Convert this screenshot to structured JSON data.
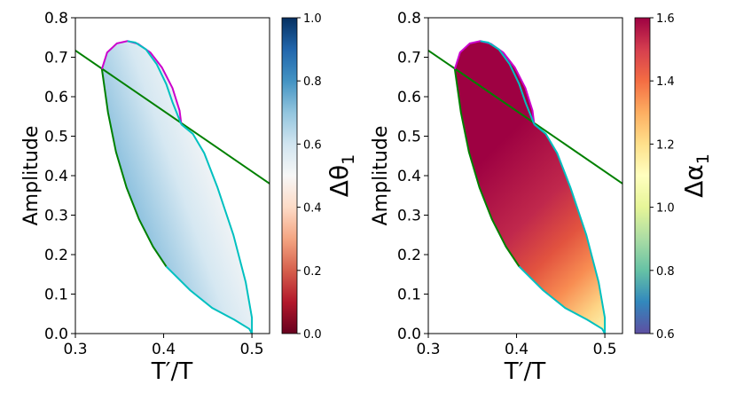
{
  "chart_data": [
    {
      "type": "heatmap",
      "title": "",
      "xlabel": "T′/T",
      "ylabel": "Amplitude",
      "xlim": [
        0.3,
        0.52
      ],
      "ylim": [
        0.0,
        0.8
      ],
      "xticks": [
        "0.3",
        "0.4",
        "0.5"
      ],
      "yticks": [
        "0.0",
        "0.1",
        "0.2",
        "0.3",
        "0.4",
        "0.5",
        "0.6",
        "0.7",
        "0.8"
      ],
      "colorbar": {
        "label": "Δθ",
        "label_sub": "1",
        "cmap": "RdBu",
        "range": [
          0.0,
          1.0
        ],
        "ticks": [
          "0.0",
          "0.2",
          "0.4",
          "0.6",
          "0.8",
          "1.0"
        ]
      },
      "field_description": "value near 0.6-0.8 toward left/lower boundary, ~0.5 near right boundary",
      "curves": [
        {
          "name": "",
          "color": "#008000",
          "points": [
            [
              0.3,
              0.717
            ],
            [
              0.52,
              0.38
            ]
          ]
        },
        {
          "name": "",
          "color": "#008000",
          "points": [
            [
              0.33,
              0.67
            ],
            [
              0.337,
              0.56
            ],
            [
              0.346,
              0.46
            ],
            [
              0.358,
              0.37
            ],
            [
              0.372,
              0.29
            ],
            [
              0.388,
              0.22
            ],
            [
              0.403,
              0.17
            ]
          ]
        },
        {
          "name": "",
          "color": "#cc00cc",
          "points": [
            [
              0.33,
              0.67
            ],
            [
              0.336,
              0.712
            ],
            [
              0.347,
              0.735
            ],
            [
              0.359,
              0.741
            ],
            [
              0.371,
              0.734
            ],
            [
              0.385,
              0.712
            ],
            [
              0.398,
              0.674
            ],
            [
              0.41,
              0.622
            ],
            [
              0.418,
              0.565
            ],
            [
              0.42,
              0.53
            ]
          ]
        },
        {
          "name": "",
          "color": "#00c0c0",
          "points": [
            [
              0.42,
              0.53
            ],
            [
              0.41,
              0.586
            ],
            [
              0.403,
              0.632
            ],
            [
              0.392,
              0.683
            ],
            [
              0.38,
              0.72
            ],
            [
              0.368,
              0.737
            ],
            [
              0.359,
              0.741
            ]
          ]
        },
        {
          "name": "",
          "color": "#00c0c0",
          "points": [
            [
              0.403,
              0.17
            ],
            [
              0.43,
              0.11
            ],
            [
              0.455,
              0.065
            ],
            [
              0.48,
              0.035
            ],
            [
              0.497,
              0.012
            ],
            [
              0.5,
              0.0
            ],
            [
              0.5,
              0.04
            ],
            [
              0.493,
              0.13
            ],
            [
              0.479,
              0.25
            ],
            [
              0.461,
              0.37
            ],
            [
              0.446,
              0.457
            ],
            [
              0.433,
              0.506
            ],
            [
              0.42,
              0.53
            ]
          ]
        }
      ]
    },
    {
      "type": "heatmap",
      "title": "",
      "xlabel": "T′/T",
      "ylabel": "Amplitude",
      "xlim": [
        0.3,
        0.52
      ],
      "ylim": [
        0.0,
        0.8
      ],
      "xticks": [
        "0.3",
        "0.4",
        "0.5"
      ],
      "yticks": [
        "0.0",
        "0.1",
        "0.2",
        "0.3",
        "0.4",
        "0.5",
        "0.6",
        "0.7",
        "0.8"
      ],
      "colorbar": {
        "label": "Δα",
        "label_sub": "1",
        "cmap": "Spectral_r",
        "range": [
          0.6,
          1.6
        ],
        "ticks": [
          "0.6",
          "0.8",
          "1.0",
          "1.2",
          "1.4",
          "1.6"
        ]
      },
      "field_description": "1.6 across upper region, decreasing toward ~1.1 at lower right boundary",
      "curves": [
        {
          "name": "",
          "color": "#008000",
          "points": [
            [
              0.3,
              0.717
            ],
            [
              0.52,
              0.38
            ]
          ]
        },
        {
          "name": "",
          "color": "#008000",
          "points": [
            [
              0.33,
              0.67
            ],
            [
              0.337,
              0.56
            ],
            [
              0.346,
              0.46
            ],
            [
              0.358,
              0.37
            ],
            [
              0.372,
              0.29
            ],
            [
              0.388,
              0.22
            ],
            [
              0.403,
              0.17
            ]
          ]
        },
        {
          "name": "",
          "color": "#cc00cc",
          "points": [
            [
              0.33,
              0.67
            ],
            [
              0.336,
              0.712
            ],
            [
              0.347,
              0.735
            ],
            [
              0.359,
              0.741
            ],
            [
              0.371,
              0.734
            ],
            [
              0.385,
              0.712
            ],
            [
              0.398,
              0.674
            ],
            [
              0.41,
              0.622
            ],
            [
              0.418,
              0.565
            ],
            [
              0.42,
              0.53
            ]
          ]
        },
        {
          "name": "",
          "color": "#00c0c0",
          "points": [
            [
              0.42,
              0.53
            ],
            [
              0.41,
              0.586
            ],
            [
              0.403,
              0.632
            ],
            [
              0.392,
              0.683
            ],
            [
              0.38,
              0.72
            ],
            [
              0.368,
              0.737
            ],
            [
              0.359,
              0.741
            ]
          ]
        },
        {
          "name": "",
          "color": "#00c0c0",
          "points": [
            [
              0.403,
              0.17
            ],
            [
              0.43,
              0.11
            ],
            [
              0.455,
              0.065
            ],
            [
              0.48,
              0.035
            ],
            [
              0.497,
              0.012
            ],
            [
              0.5,
              0.0
            ],
            [
              0.5,
              0.04
            ],
            [
              0.493,
              0.13
            ],
            [
              0.479,
              0.25
            ],
            [
              0.461,
              0.37
            ],
            [
              0.446,
              0.457
            ],
            [
              0.433,
              0.506
            ],
            [
              0.42,
              0.53
            ]
          ]
        }
      ]
    }
  ]
}
